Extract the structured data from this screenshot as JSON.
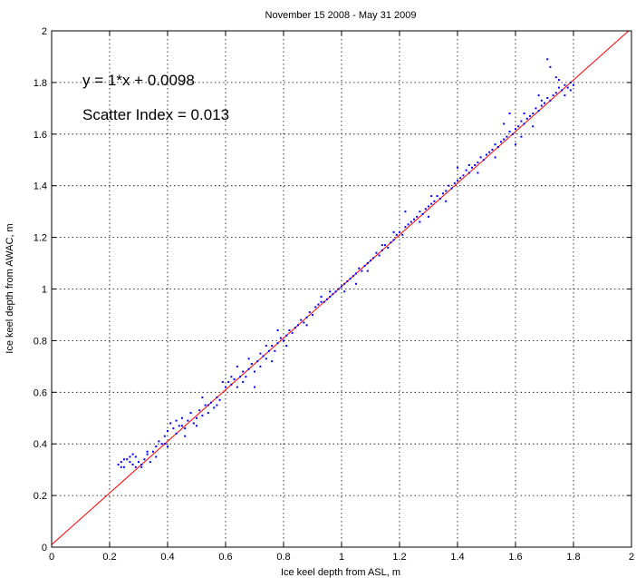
{
  "chart_data": {
    "type": "scatter",
    "title": "November 15 2008 - May 31 2009",
    "xlabel": "Ice keel depth from ASL, m",
    "ylabel": "Ice keel depth from AWAC, m",
    "xlim": [
      0,
      2
    ],
    "ylim": [
      0,
      2
    ],
    "xticks": [
      "0",
      "0.2",
      "0.4",
      "0.6",
      "0.8",
      "1",
      "1.2",
      "1.4",
      "1.6",
      "1.8",
      "2"
    ],
    "yticks": [
      "0",
      "0.2",
      "0.4",
      "0.6",
      "0.8",
      "1",
      "1.2",
      "1.4",
      "1.6",
      "1.8",
      "2"
    ],
    "grid": true,
    "annotations": [
      "y = 1*x + 0.0098",
      "Scatter Index = 0.013"
    ],
    "fit_line": {
      "slope": 1,
      "intercept": 0.0098,
      "color": "#ff0000"
    },
    "point_color": "#0000ff",
    "series": [
      {
        "values": [
          [
            0.23,
            0.32
          ],
          [
            0.24,
            0.33
          ],
          [
            0.25,
            0.31
          ],
          [
            0.26,
            0.34
          ],
          [
            0.27,
            0.33
          ],
          [
            0.28,
            0.32
          ],
          [
            0.29,
            0.35
          ],
          [
            0.3,
            0.33
          ],
          [
            0.31,
            0.31
          ],
          [
            0.32,
            0.34
          ],
          [
            0.33,
            0.36
          ],
          [
            0.34,
            0.33
          ],
          [
            0.35,
            0.37
          ],
          [
            0.36,
            0.39
          ],
          [
            0.37,
            0.41
          ],
          [
            0.38,
            0.4
          ],
          [
            0.39,
            0.43
          ],
          [
            0.4,
            0.45
          ],
          [
            0.41,
            0.48
          ],
          [
            0.42,
            0.46
          ],
          [
            0.43,
            0.44
          ],
          [
            0.44,
            0.47
          ],
          [
            0.45,
            0.5
          ],
          [
            0.46,
            0.46
          ],
          [
            0.47,
            0.49
          ],
          [
            0.48,
            0.52
          ],
          [
            0.49,
            0.48
          ],
          [
            0.5,
            0.5
          ],
          [
            0.51,
            0.53
          ],
          [
            0.52,
            0.51
          ],
          [
            0.53,
            0.55
          ],
          [
            0.54,
            0.52
          ],
          [
            0.55,
            0.56
          ],
          [
            0.56,
            0.54
          ],
          [
            0.57,
            0.58
          ],
          [
            0.58,
            0.57
          ],
          [
            0.6,
            0.62
          ],
          [
            0.61,
            0.64
          ],
          [
            0.62,
            0.63
          ],
          [
            0.63,
            0.65
          ],
          [
            0.64,
            0.62
          ],
          [
            0.65,
            0.66
          ],
          [
            0.66,
            0.68
          ],
          [
            0.67,
            0.66
          ],
          [
            0.68,
            0.69
          ],
          [
            0.69,
            0.71
          ],
          [
            0.7,
            0.68
          ],
          [
            0.71,
            0.72
          ],
          [
            0.72,
            0.7
          ],
          [
            0.73,
            0.74
          ],
          [
            0.74,
            0.73
          ],
          [
            0.75,
            0.76
          ],
          [
            0.76,
            0.78
          ],
          [
            0.77,
            0.76
          ],
          [
            0.78,
            0.79
          ],
          [
            0.79,
            0.81
          ],
          [
            0.8,
            0.8
          ],
          [
            0.81,
            0.82
          ],
          [
            0.82,
            0.84
          ],
          [
            0.83,
            0.83
          ],
          [
            0.84,
            0.85
          ],
          [
            0.85,
            0.86
          ],
          [
            0.86,
            0.88
          ],
          [
            0.87,
            0.87
          ],
          [
            0.88,
            0.89
          ],
          [
            0.89,
            0.91
          ],
          [
            0.9,
            0.9
          ],
          [
            0.91,
            0.93
          ],
          [
            0.92,
            0.94
          ],
          [
            0.93,
            0.95
          ],
          [
            0.94,
            0.95
          ],
          [
            0.95,
            0.96
          ],
          [
            0.96,
            0.97
          ],
          [
            0.97,
            0.98
          ],
          [
            0.98,
            0.99
          ],
          [
            0.99,
            1.0
          ],
          [
            1.0,
            1.01
          ],
          [
            1.01,
            1.02
          ],
          [
            1.02,
            1.03
          ],
          [
            1.03,
            1.04
          ],
          [
            1.04,
            1.05
          ],
          [
            1.05,
            1.06
          ],
          [
            1.06,
            1.08
          ],
          [
            1.07,
            1.07
          ],
          [
            1.08,
            1.09
          ],
          [
            1.09,
            1.1
          ],
          [
            1.1,
            1.11
          ],
          [
            1.11,
            1.12
          ],
          [
            1.12,
            1.14
          ],
          [
            1.13,
            1.13
          ],
          [
            1.14,
            1.15
          ],
          [
            1.15,
            1.17
          ],
          [
            1.16,
            1.16
          ],
          [
            1.17,
            1.18
          ],
          [
            1.18,
            1.19
          ],
          [
            1.19,
            1.21
          ],
          [
            1.2,
            1.22
          ],
          [
            1.21,
            1.21
          ],
          [
            1.22,
            1.24
          ],
          [
            1.23,
            1.25
          ],
          [
            1.24,
            1.26
          ],
          [
            1.25,
            1.27
          ],
          [
            1.26,
            1.28
          ],
          [
            1.27,
            1.3
          ],
          [
            1.28,
            1.29
          ],
          [
            1.29,
            1.31
          ],
          [
            1.3,
            1.32
          ],
          [
            1.31,
            1.33
          ],
          [
            1.32,
            1.34
          ],
          [
            1.33,
            1.36
          ],
          [
            1.34,
            1.35
          ],
          [
            1.35,
            1.37
          ],
          [
            1.36,
            1.38
          ],
          [
            1.37,
            1.4
          ],
          [
            1.38,
            1.39
          ],
          [
            1.39,
            1.41
          ],
          [
            1.4,
            1.42
          ],
          [
            1.41,
            1.43
          ],
          [
            1.42,
            1.44
          ],
          [
            1.43,
            1.46
          ],
          [
            1.44,
            1.45
          ],
          [
            1.45,
            1.47
          ],
          [
            1.46,
            1.48
          ],
          [
            1.47,
            1.49
          ],
          [
            1.48,
            1.51
          ],
          [
            1.49,
            1.5
          ],
          [
            1.5,
            1.52
          ],
          [
            1.51,
            1.53
          ],
          [
            1.52,
            1.54
          ],
          [
            1.53,
            1.56
          ],
          [
            1.54,
            1.55
          ],
          [
            1.55,
            1.57
          ],
          [
            1.56,
            1.58
          ],
          [
            1.57,
            1.59
          ],
          [
            1.58,
            1.61
          ],
          [
            1.59,
            1.6
          ],
          [
            1.6,
            1.62
          ],
          [
            1.61,
            1.63
          ],
          [
            1.62,
            1.65
          ],
          [
            1.63,
            1.64
          ],
          [
            1.64,
            1.66
          ],
          [
            1.65,
            1.67
          ],
          [
            1.66,
            1.68
          ],
          [
            1.67,
            1.7
          ],
          [
            1.68,
            1.69
          ],
          [
            1.69,
            1.71
          ],
          [
            1.7,
            1.72
          ],
          [
            1.71,
            1.74
          ],
          [
            1.72,
            1.73
          ],
          [
            1.73,
            1.75
          ],
          [
            1.74,
            1.76
          ],
          [
            1.75,
            1.78
          ],
          [
            1.76,
            1.77
          ],
          [
            1.77,
            1.79
          ],
          [
            1.78,
            1.78
          ],
          [
            1.79,
            1.8
          ],
          [
            1.8,
            1.79
          ],
          [
            1.71,
            1.89
          ],
          [
            1.72,
            1.86
          ],
          [
            1.68,
            1.75
          ],
          [
            1.66,
            1.63
          ],
          [
            1.62,
            1.59
          ],
          [
            1.58,
            1.68
          ],
          [
            1.56,
            1.64
          ],
          [
            1.6,
            1.56
          ],
          [
            1.4,
            1.47
          ],
          [
            1.22,
            1.3
          ],
          [
            1.05,
            1.02
          ],
          [
            0.96,
            0.99
          ],
          [
            0.78,
            0.84
          ],
          [
            0.74,
            0.78
          ],
          [
            0.7,
            0.62
          ],
          [
            0.64,
            0.7
          ],
          [
            0.59,
            0.64
          ],
          [
            0.52,
            0.58
          ],
          [
            0.46,
            0.43
          ],
          [
            0.4,
            0.39
          ],
          [
            0.33,
            0.37
          ],
          [
            0.28,
            0.36
          ],
          [
            0.25,
            0.34
          ],
          [
            1.74,
            1.82
          ],
          [
            1.77,
            1.75
          ],
          [
            1.79,
            1.77
          ],
          [
            1.75,
            1.81
          ],
          [
            1.69,
            1.73
          ],
          [
            1.63,
            1.68
          ],
          [
            1.53,
            1.51
          ],
          [
            1.47,
            1.45
          ],
          [
            1.36,
            1.34
          ],
          [
            1.31,
            1.36
          ],
          [
            1.27,
            1.26
          ],
          [
            1.18,
            1.22
          ],
          [
            1.14,
            1.17
          ],
          [
            1.09,
            1.07
          ],
          [
            1.01,
            0.99
          ],
          [
            0.93,
            0.97
          ],
          [
            0.88,
            0.86
          ],
          [
            0.81,
            0.78
          ],
          [
            0.76,
            0.72
          ],
          [
            0.72,
            0.75
          ],
          [
            0.68,
            0.73
          ],
          [
            0.66,
            0.64
          ],
          [
            0.62,
            0.66
          ],
          [
            0.57,
            0.55
          ],
          [
            0.54,
            0.55
          ],
          [
            0.5,
            0.47
          ],
          [
            0.45,
            0.47
          ],
          [
            0.43,
            0.49
          ],
          [
            0.39,
            0.4
          ],
          [
            0.36,
            0.35
          ],
          [
            0.31,
            0.32
          ],
          [
            0.29,
            0.31
          ],
          [
            0.27,
            0.35
          ],
          [
            0.24,
            0.31
          ],
          [
            1.3,
            1.28
          ],
          [
            1.44,
            1.48
          ]
        ]
      }
    ]
  }
}
